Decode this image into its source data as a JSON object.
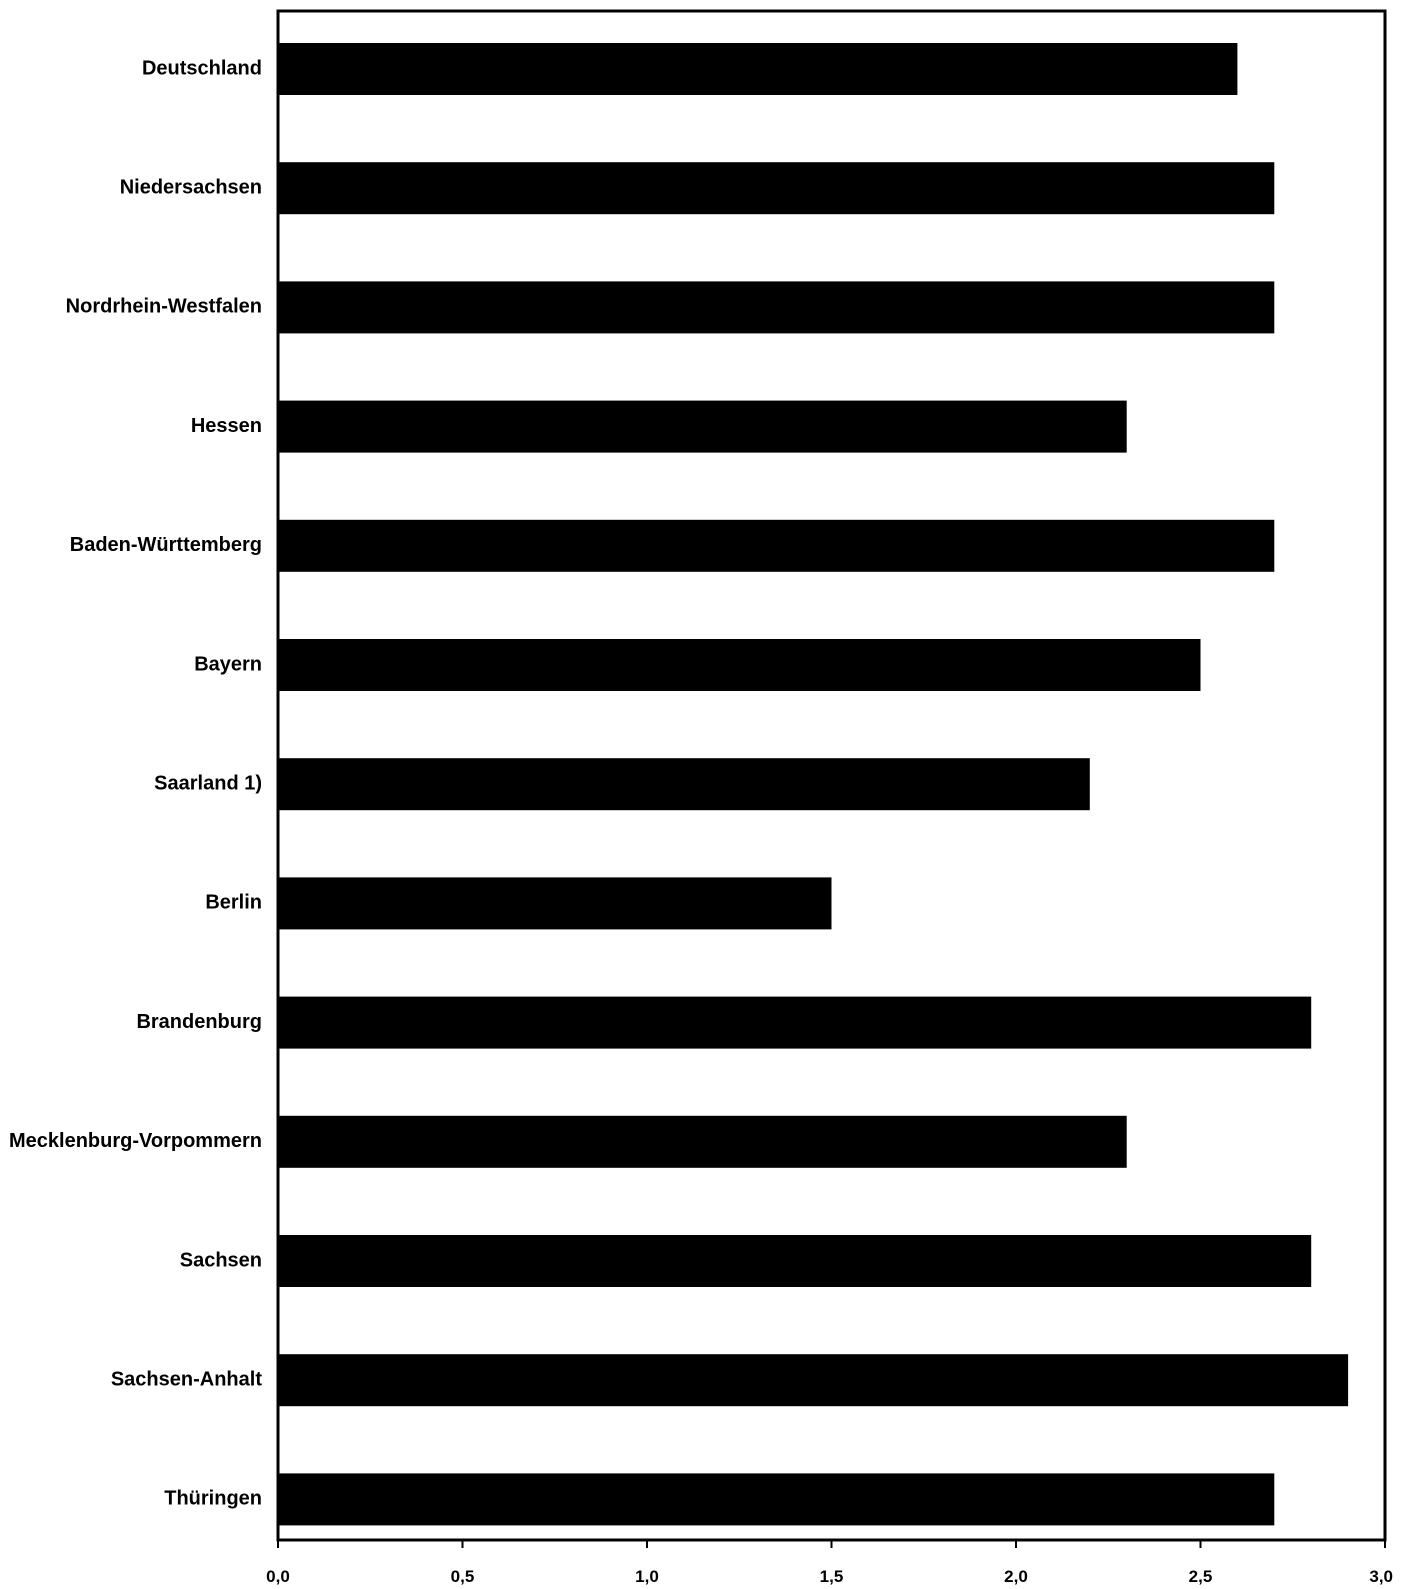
{
  "colors": {
    "bar": "#000000",
    "frame": "#000000",
    "background": "#ffffff",
    "text": "#000000"
  },
  "chart_data": {
    "type": "bar",
    "orientation": "horizontal",
    "title": "",
    "xlabel": "",
    "ylabel": "",
    "categories": [
      "Deutschland",
      "Niedersachsen",
      "Nordrhein-Westfalen",
      "Hessen",
      "Baden-Württemberg",
      "Bayern",
      "Saarland 1)",
      "Berlin",
      "Brandenburg",
      "Mecklenburg-Vorpommern",
      "Sachsen",
      "Sachsen-Anhalt",
      "Thüringen"
    ],
    "values": [
      2.6,
      2.7,
      2.7,
      2.3,
      2.7,
      2.5,
      2.2,
      1.5,
      2.8,
      2.3,
      2.8,
      2.9,
      2.7
    ],
    "xlim": [
      0,
      3
    ],
    "x_ticks": [
      0,
      0.5,
      1,
      1.5,
      2,
      2.5,
      3
    ],
    "x_tick_labels": [
      "0,0",
      "0,5",
      "1,0",
      "1,5",
      "2,0",
      "2,5",
      "3,0"
    ],
    "grid": false,
    "legend": "none"
  }
}
